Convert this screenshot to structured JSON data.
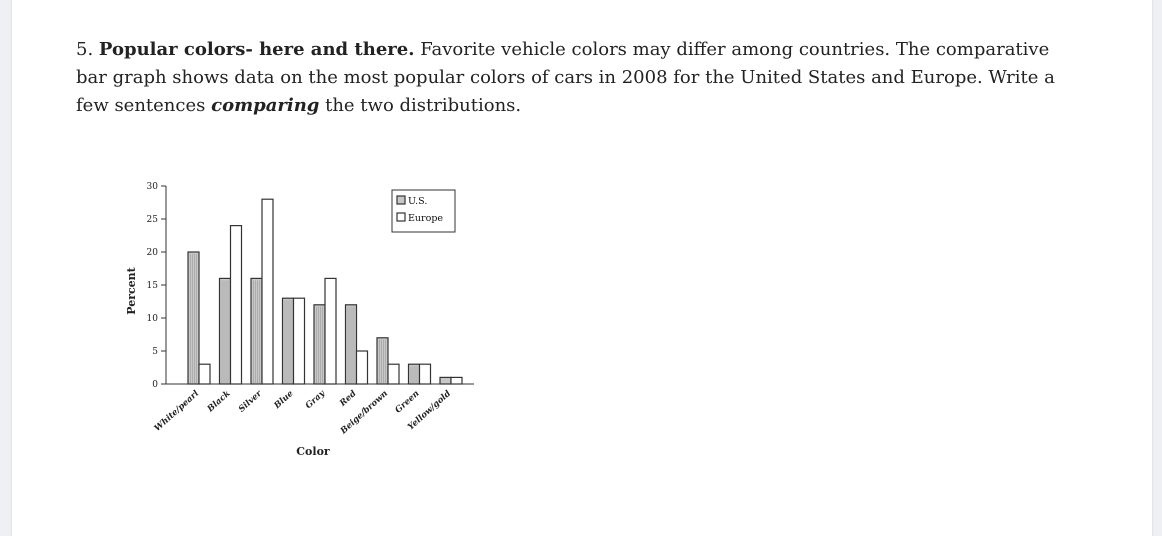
{
  "question": {
    "number": "5.",
    "title": "Popular colors- here and there.",
    "text_1": "Favorite vehicle colors may differ among countries. The comparative bar graph shows data on the most popular colors of cars in 2008 for the United States and Europe. Write a few sentences",
    "emphasis": "comparing",
    "text_2": "the two distributions."
  },
  "chart_data": {
    "type": "bar",
    "categories": [
      "White/pearl",
      "Black",
      "Silver",
      "Blue",
      "Gray",
      "Red",
      "Beige/brown",
      "Green",
      "Yellow/gold"
    ],
    "series": [
      {
        "name": "U.S.",
        "values": [
          20,
          16,
          16,
          13,
          12,
          12,
          7,
          3,
          1
        ]
      },
      {
        "name": "Europe",
        "values": [
          3,
          24,
          28,
          13,
          16,
          5,
          3,
          3,
          1
        ]
      }
    ],
    "xlabel": "Color",
    "ylabel": "Percent",
    "yticks": [
      0,
      5,
      10,
      15,
      20,
      25,
      30
    ],
    "ylim": [
      0,
      30
    ],
    "legend_position": "top-right",
    "colors": {
      "us": "#c8c8c8",
      "europe": "#ffffff",
      "stroke": "#333333"
    }
  }
}
